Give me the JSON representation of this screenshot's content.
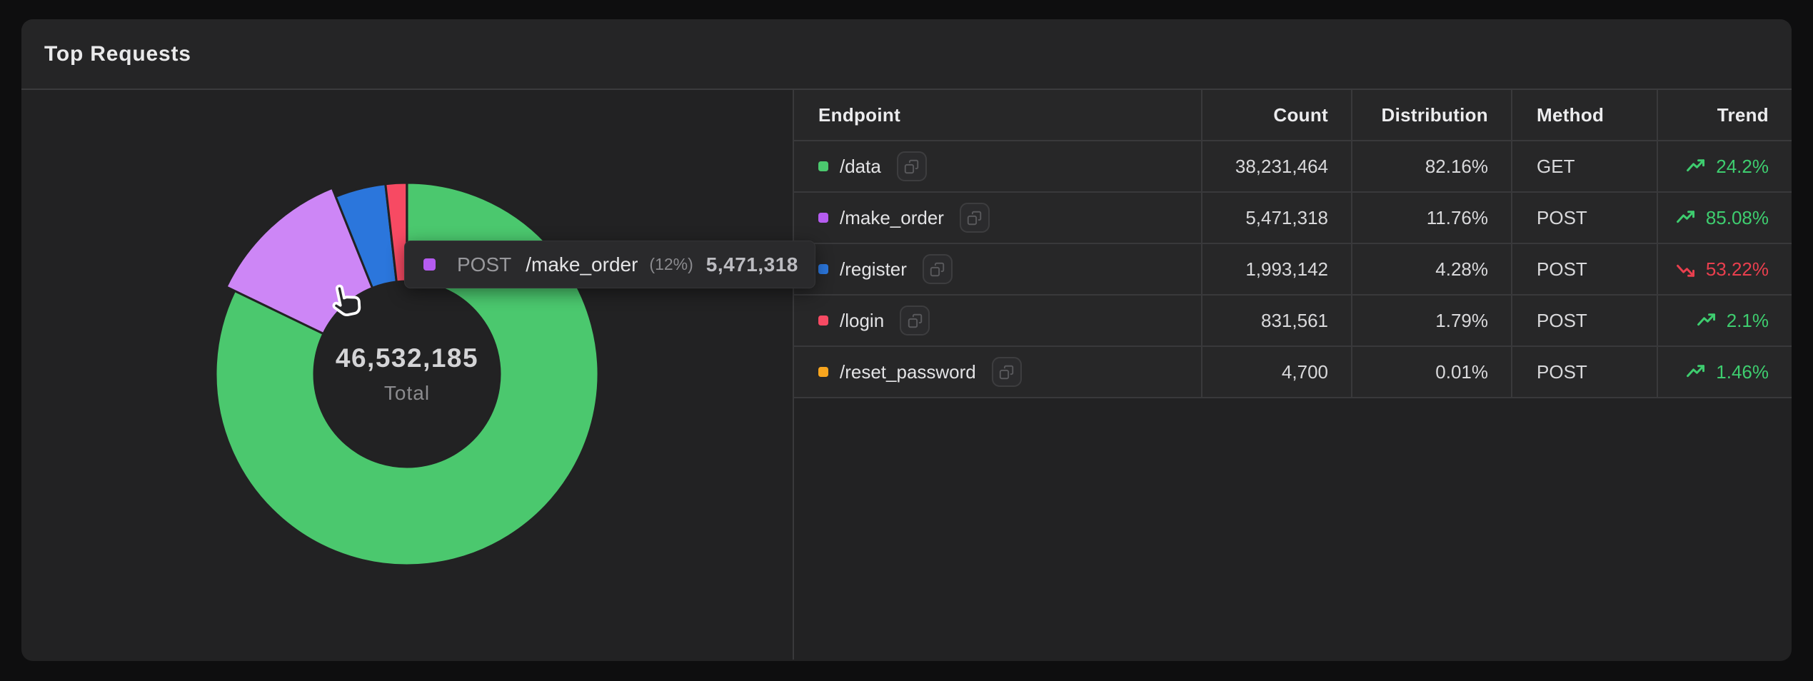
{
  "card": {
    "title": "Top Requests"
  },
  "chart_data": {
    "type": "pie",
    "variant": "donut",
    "title": "Top Requests",
    "legend_position": "none",
    "start_angle_deg": 0,
    "direction": "clockwise",
    "center_value": "46,532,185",
    "center_label": "Total",
    "total": 46532185,
    "slices": [
      {
        "label": "/data",
        "method": "GET",
        "value": 38231464,
        "pct": 82.16,
        "color": "#4bc86e",
        "chart_color": "#4bc86e",
        "hovered": false
      },
      {
        "label": "/make_order",
        "method": "POST",
        "value": 5471318,
        "pct": 11.76,
        "color": "#b55cf0",
        "chart_color": "#cd86f6",
        "hovered": true
      },
      {
        "label": "/register",
        "method": "POST",
        "value": 1993142,
        "pct": 4.28,
        "color": "#2b76dc",
        "chart_color": "#2b76dc",
        "hovered": false
      },
      {
        "label": "/login",
        "method": "POST",
        "value": 831561,
        "pct": 1.79,
        "color": "#f74a63",
        "chart_color": "#f74a63",
        "hovered": false
      },
      {
        "label": "/reset_password",
        "method": "POST",
        "value": 4700,
        "pct": 0.01,
        "color": "#f8a51e",
        "chart_color": "#f8a51e",
        "hovered": false
      }
    ]
  },
  "tooltip": {
    "method": "POST",
    "endpoint": "/make_order",
    "pct": "(12%)",
    "value": "5,471,318",
    "marker_color": "#b55cf0"
  },
  "table": {
    "columns": [
      {
        "label": "Endpoint",
        "align": "left"
      },
      {
        "label": "Count",
        "align": "right"
      },
      {
        "label": "Distribution",
        "align": "right"
      },
      {
        "label": "Method",
        "align": "left"
      },
      {
        "label": "Trend",
        "align": "right"
      }
    ],
    "rows": [
      {
        "endpoint": "/data",
        "marker_color": "#4bc86e",
        "count": "38,231,464",
        "distribution": "82.16%",
        "method": "GET",
        "trend": "24.2%",
        "trend_direction": "up"
      },
      {
        "endpoint": "/make_order",
        "marker_color": "#b55cf0",
        "count": "5,471,318",
        "distribution": "11.76%",
        "method": "POST",
        "trend": "85.08%",
        "trend_direction": "up"
      },
      {
        "endpoint": "/register",
        "marker_color": "#2b76dc",
        "count": "1,993,142",
        "distribution": "4.28%",
        "method": "POST",
        "trend": "53.22%",
        "trend_direction": "down"
      },
      {
        "endpoint": "/login",
        "marker_color": "#f74a63",
        "count": "831,561",
        "distribution": "1.79%",
        "method": "POST",
        "trend": "2.1%",
        "trend_direction": "up"
      },
      {
        "endpoint": "/reset_password",
        "marker_color": "#f8a51e",
        "count": "4,700",
        "distribution": "0.01%",
        "method": "POST",
        "trend": "1.46%",
        "trend_direction": "up"
      }
    ],
    "trend_up_color": "#3ecd6f",
    "trend_down_color": "#e93f4e"
  }
}
